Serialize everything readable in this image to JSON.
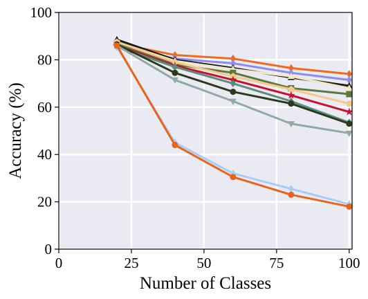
{
  "chart_data": {
    "type": "line",
    "title": "",
    "xlabel": "Number of Classes",
    "ylabel": "Accuracy (%)",
    "xlim": [
      0,
      101
    ],
    "ylim": [
      0,
      100
    ],
    "xticks": [
      0,
      25,
      50,
      75,
      100
    ],
    "yticks": [
      0,
      20,
      40,
      60,
      80,
      100
    ],
    "grid": true,
    "background": "#eaeaf2",
    "x": [
      20,
      40,
      60,
      80,
      100
    ],
    "series": [
      {
        "color": "#f06a1c",
        "marker": "diamond",
        "values": [
          87.0,
          82.0,
          80.5,
          76.5,
          74.0
        ]
      },
      {
        "color": "#8a8cf0",
        "marker": "diamond",
        "values": [
          86.0,
          80.5,
          78.5,
          74.5,
          71.5
        ]
      },
      {
        "color": "#1a1a1a",
        "marker": "triangle-up",
        "values": [
          88.5,
          80.0,
          76.5,
          72.5,
          69.0
        ]
      },
      {
        "color": "#f2e8c8",
        "marker": "triangle-up",
        "values": [
          87.5,
          79.5,
          76.0,
          73.0,
          68.0
        ]
      },
      {
        "color": "#5a7a3c",
        "marker": "square",
        "values": [
          87.0,
          78.0,
          74.5,
          68.0,
          65.5
        ]
      },
      {
        "color": "#f6c98a",
        "marker": "pentagon",
        "values": [
          87.5,
          79.0,
          73.0,
          67.5,
          61.5
        ]
      },
      {
        "color": "#c8102e",
        "marker": "star",
        "values": [
          86.0,
          77.5,
          71.5,
          65.0,
          58.0
        ]
      },
      {
        "color": "#5a8d7e",
        "marker": "diamond",
        "values": [
          85.5,
          77.0,
          70.0,
          62.5,
          53.5
        ]
      },
      {
        "color": "#2c3a1c",
        "marker": "circle",
        "values": [
          86.5,
          74.5,
          66.5,
          61.5,
          53.0
        ]
      },
      {
        "color": "#8fa9a4",
        "marker": "triangle-down",
        "values": [
          86.0,
          71.5,
          62.5,
          53.0,
          49.0
        ]
      },
      {
        "color": "#a6cdf7",
        "marker": "diamond",
        "values": [
          85.5,
          45.0,
          32.0,
          25.5,
          19.0
        ]
      },
      {
        "color": "#e8641a",
        "marker": "circle",
        "values": [
          86.0,
          44.0,
          30.5,
          23.0,
          18.0
        ]
      }
    ]
  }
}
